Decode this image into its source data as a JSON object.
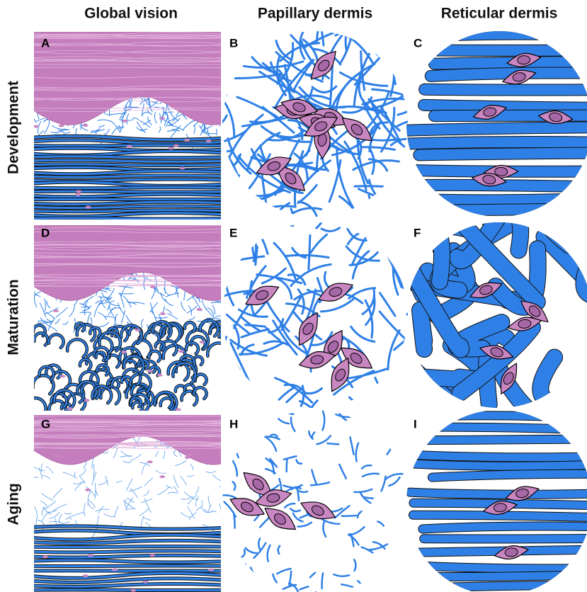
{
  "columns": [
    "Global vision",
    "Papillary dermis",
    "Reticular dermis"
  ],
  "rows": [
    {
      "label": "Development",
      "panels": [
        "A",
        "B",
        "C"
      ]
    },
    {
      "label": "Maturation",
      "panels": [
        "D",
        "E",
        "F"
      ]
    },
    {
      "label": "Aging",
      "panels": [
        "G",
        "H",
        "I"
      ]
    }
  ]
}
